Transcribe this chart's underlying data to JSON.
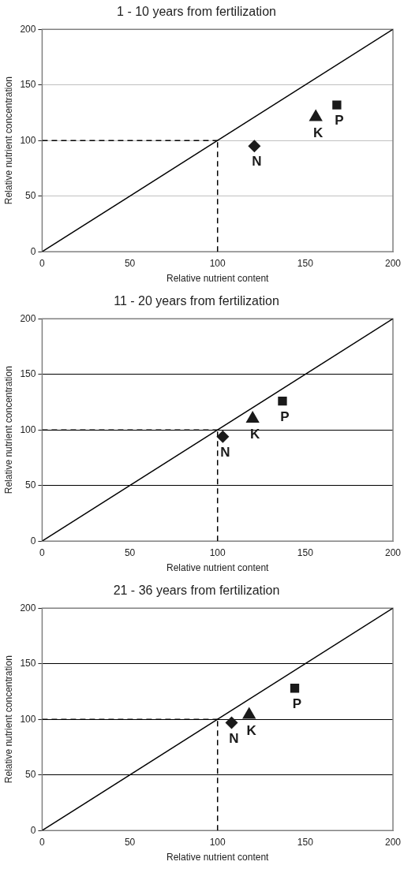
{
  "chart_data": [
    {
      "type": "scatter",
      "title": "1 - 10 years from fertilization",
      "xlabel": "Relative nutrient content",
      "ylabel": "Relative nutrient concentration",
      "xlim": [
        0,
        200
      ],
      "ylim": [
        0,
        200
      ],
      "xticks": [
        0,
        50,
        100,
        150,
        200
      ],
      "yticks": [
        0,
        50,
        100,
        150,
        200
      ],
      "grid": "y",
      "series": [
        {
          "name": "N",
          "color": "#1a1a1a",
          "marker": "diamond",
          "x": [
            121
          ],
          "values": [
            95
          ]
        },
        {
          "name": "K",
          "color": "#1a1a1a",
          "marker": "triangle",
          "x": [
            156
          ],
          "values": [
            121
          ]
        },
        {
          "name": "P",
          "color": "#1a1a1a",
          "marker": "square",
          "x": [
            168
          ],
          "values": [
            132
          ]
        },
        {
          "type": "line",
          "color": "#000000",
          "marker": "none",
          "line_style": "solid",
          "x": [
            0,
            200
          ],
          "values": [
            0,
            200
          ]
        },
        {
          "type": "line",
          "color": "#000000",
          "marker": "none",
          "line_style": "dashed",
          "x": [
            0,
            100
          ],
          "values": [
            100,
            100
          ]
        },
        {
          "type": "line",
          "color": "#000000",
          "marker": "none",
          "line_style": "dashed",
          "x": [
            100,
            100
          ],
          "values": [
            0,
            100
          ]
        }
      ]
    },
    {
      "type": "scatter",
      "title": "11 - 20 years from fertilization",
      "xlabel": "Relative nutrient content",
      "ylabel": "Relative nutrient concentration",
      "xlim": [
        0,
        200
      ],
      "ylim": [
        0,
        200
      ],
      "xticks": [
        0,
        50,
        100,
        150,
        200
      ],
      "yticks": [
        0,
        50,
        100,
        150,
        200
      ],
      "grid": "y",
      "series": [
        {
          "name": "N",
          "color": "#1a1a1a",
          "marker": "diamond",
          "x": [
            103
          ],
          "values": [
            94
          ]
        },
        {
          "name": "K",
          "color": "#1a1a1a",
          "marker": "triangle",
          "x": [
            120
          ],
          "values": [
            110
          ]
        },
        {
          "name": "P",
          "color": "#1a1a1a",
          "marker": "square",
          "x": [
            137
          ],
          "values": [
            126
          ]
        },
        {
          "type": "line",
          "color": "#000000",
          "marker": "none",
          "line_style": "solid",
          "x": [
            0,
            200
          ],
          "values": [
            0,
            200
          ]
        },
        {
          "type": "line",
          "color": "#000000",
          "marker": "none",
          "line_style": "dashed",
          "x": [
            0,
            100
          ],
          "values": [
            100,
            100
          ]
        },
        {
          "type": "line",
          "color": "#000000",
          "marker": "none",
          "line_style": "dashed",
          "x": [
            100,
            100
          ],
          "values": [
            0,
            100
          ]
        }
      ]
    },
    {
      "type": "scatter",
      "title": "21 - 36 years from fertilization",
      "xlabel": "Relative nutrient content",
      "ylabel": "Relative nutrient concentration",
      "xlim": [
        0,
        200
      ],
      "ylim": [
        0,
        200
      ],
      "xticks": [
        0,
        50,
        100,
        150,
        200
      ],
      "yticks": [
        0,
        50,
        100,
        150,
        200
      ],
      "grid": "y",
      "series": [
        {
          "name": "N",
          "color": "#1a1a1a",
          "marker": "diamond",
          "x": [
            108
          ],
          "values": [
            97
          ]
        },
        {
          "name": "K",
          "color": "#1a1a1a",
          "marker": "triangle",
          "x": [
            118
          ],
          "values": [
            104
          ]
        },
        {
          "name": "P",
          "color": "#1a1a1a",
          "marker": "square",
          "x": [
            144
          ],
          "values": [
            128
          ]
        },
        {
          "type": "line",
          "color": "#000000",
          "marker": "none",
          "line_style": "solid",
          "x": [
            0,
            200
          ],
          "values": [
            0,
            200
          ]
        },
        {
          "type": "line",
          "color": "#000000",
          "marker": "none",
          "line_style": "dashed",
          "x": [
            0,
            100
          ],
          "values": [
            100,
            100
          ]
        },
        {
          "type": "line",
          "color": "#000000",
          "marker": "none",
          "line_style": "dashed",
          "x": [
            100,
            100
          ],
          "values": [
            0,
            100
          ]
        }
      ]
    }
  ]
}
